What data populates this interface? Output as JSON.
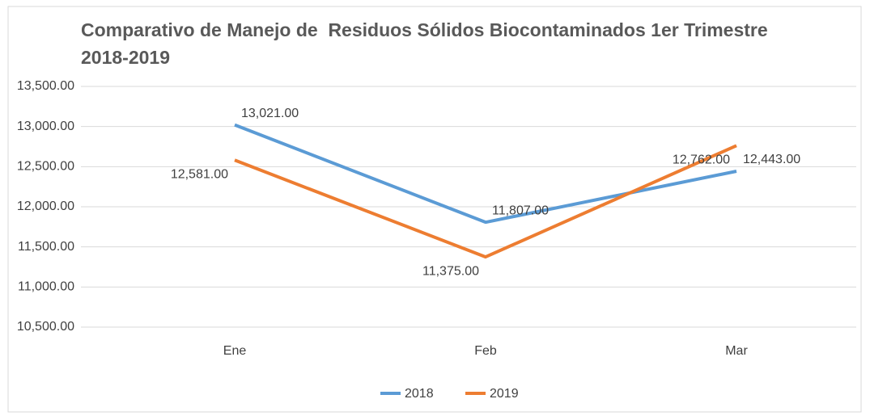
{
  "chart_data": {
    "type": "line",
    "title": "Comparativo de Manejo de  Residuos Sólidos Biocontaminados 1er Trimestre 2018-2019",
    "categories": [
      "Ene",
      "Feb",
      "Mar"
    ],
    "series": [
      {
        "name": "2018",
        "color": "#5b9bd5",
        "values": [
          13021,
          11807,
          12443
        ],
        "value_labels": [
          "13,021.00",
          "11,807.00",
          "12,443.00"
        ]
      },
      {
        "name": "2019",
        "color": "#ed7d31",
        "values": [
          12581,
          11375,
          12762
        ],
        "value_labels": [
          "12,581.00",
          "11,375.00",
          "12,762.00"
        ]
      }
    ],
    "ylim": [
      10500,
      13500
    ],
    "yticks": [
      {
        "value": 10500,
        "label": "10,500.00"
      },
      {
        "value": 11000,
        "label": "11,000.00"
      },
      {
        "value": 11500,
        "label": "11,500.00"
      },
      {
        "value": 12000,
        "label": "12,000.00"
      },
      {
        "value": 12500,
        "label": "12,500.00"
      },
      {
        "value": 13000,
        "label": "13,000.00"
      },
      {
        "value": 13500,
        "label": "13,500.00"
      }
    ],
    "grid": true,
    "legend": "bottom"
  }
}
